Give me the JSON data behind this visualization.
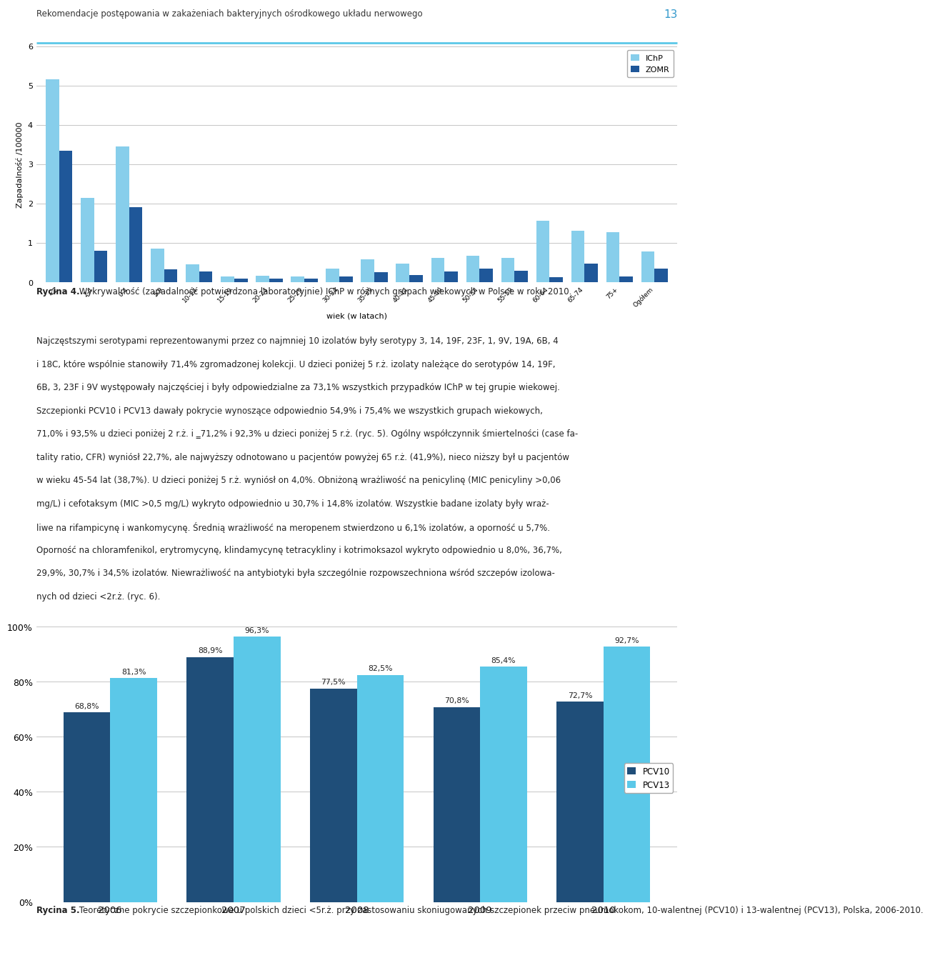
{
  "header_text": "Rekomendacje postępowania w zakażeniach bakteryjnych ośrodkowego układu nerwowego",
  "page_number": "13",
  "chart1": {
    "ylabel": "Zapadalność /100000",
    "xlabel": "wiek (w latach)",
    "ylim": [
      0,
      6
    ],
    "yticks": [
      0,
      1,
      2,
      3,
      4,
      5,
      6
    ],
    "categories": [
      "<2",
      "2-4",
      "0-4",
      "5-9",
      "10-14",
      "15-19",
      "20-24",
      "25-29",
      "30-34",
      "35-39",
      "40-44",
      "45-49",
      "50-54",
      "55-59",
      "60-64",
      "65-74",
      "75+",
      "Ogółem"
    ],
    "IChP": [
      5.15,
      2.15,
      3.45,
      0.85,
      0.45,
      0.15,
      0.17,
      0.15,
      0.35,
      0.58,
      0.47,
      0.62,
      0.68,
      0.62,
      1.57,
      1.3,
      1.28,
      0.78
    ],
    "ZOMR": [
      3.35,
      0.8,
      1.9,
      0.33,
      0.28,
      0.1,
      0.1,
      0.1,
      0.15,
      0.25,
      0.18,
      0.27,
      0.35,
      0.3,
      0.13,
      0.47,
      0.15,
      0.35
    ],
    "IChP_color": "#87CEEB",
    "ZOMR_color": "#1F5799",
    "legend_labels": [
      "IChP",
      "ZOMR"
    ]
  },
  "caption1_bold": "Rycina 4.",
  "caption1_text": " Wykrywalność (zapadalność potwierdzona laboratoryjnie) IChP w różnych grupach wiekowych w Polsce w roku 2010.",
  "body_text_lines": [
    "Najczęstszymi serotypami reprezentowanymi przez co najmniej 10 izolatów były serotypy 3, 14, 19F, 23F, 1, 9V, 19A, 6B, 4",
    "i 18C, które wspólnie stanowiły 71,4% zgromadzonej kolekcji. U dzieci poniżej 5 r.ż. izolaty należące do serotypów 14, 19F,",
    "6B, 3, 23F i 9V występowały najczęściej i były odpowiedzialne za 73,1% wszystkich przypadków IChP w tej grupie wiekowej.",
    "Szczepionki PCV10 i PCV13 dawały pokrycie wynoszące odpowiednio 54,9% i 75,4% we wszystkich grupach wiekowych,",
    "71,0% i 93,5% u dzieci poniżej 2 r.ż. i ‗71,2% i 92,3% u dzieci poniżej 5 r.ż. (ryc. 5). Ogólny współczynnik śmiertelności (case fa-",
    "tality ratio, CFR) wyniósł 22,7%, ale najwyższy odnotowano u pacjentów powyżej 65 r.ż. (41,9%), nieco niższy był u pacjentów",
    "w wieku 45-54 lat (38,7%). U dzieci poniżej 5 r.ż. wyniósł on 4,0%. Obniżoną wrażliwość na penicylinę (MIC penicyliny >0,06",
    "mg/L) i cefotaksym (MIC >0,5 mg/L) wykryto odpowiednio u 30,7% i 14,8% izolatów. Wszystkie badane izolaty były wraż-",
    "liwe na rifampicynę i wankomycynę. Średnią wrażliwość na meropenem stwierdzono u 6,1% izolatów, a oporność u 5,7%.",
    "Oporność na chloramfenikol, erytromycynę, klindamycynę tetracykliny i kotrimoksazol wykryto odpowiednio u 8,0%, 36,7%,",
    "29,9%, 30,7% i 34,5% izolatów. Niewrażliwość na antybiotyki była szczególnie rozpowszechniona wśród szczepów izolowa-",
    "nych od dzieci <2r.ż. (ryc. 6)."
  ],
  "chart2": {
    "ylim": [
      0,
      100
    ],
    "ytick_labels": [
      "0%",
      "20%",
      "40%",
      "60%",
      "80%",
      "100%"
    ],
    "ytick_values": [
      0,
      20,
      40,
      60,
      80,
      100
    ],
    "years": [
      "2006",
      "2007",
      "2008",
      "2009",
      "2010"
    ],
    "PCV10": [
      68.8,
      88.9,
      77.5,
      70.8,
      72.7
    ],
    "PCV13": [
      81.3,
      96.3,
      82.5,
      85.4,
      92.7
    ],
    "PCV10_color": "#1F4E79",
    "PCV13_color": "#5BC8E8",
    "PCV10_label": "PCV10",
    "PCV13_label": "PCV13",
    "bar_annotations_PCV10": [
      "68,8%",
      "88,9%",
      "77,5%",
      "70,8%",
      "72,7%"
    ],
    "bar_annotations_PCV13": [
      "81,3%",
      "96,3%",
      "82,5%",
      "85,4%",
      "92,7%"
    ]
  },
  "caption2_bold": "Rycina 5.",
  "caption2_text": " Teoretyczne pokrycie szczepionkowe u polskich dzieci <5r.ż. przy zastosowaniu skoniugowanych szczepionek przeciw pneumokokom, 10-walentnej (PCV10) i 13-walentnej (PCV13), Polska, 2006-2010.",
  "page_bg": "#FFFFFF",
  "header_color": "#333333",
  "accent_line_color": "#5BC8E8",
  "text_color": "#222222",
  "grid_color": "#BBBBBB"
}
